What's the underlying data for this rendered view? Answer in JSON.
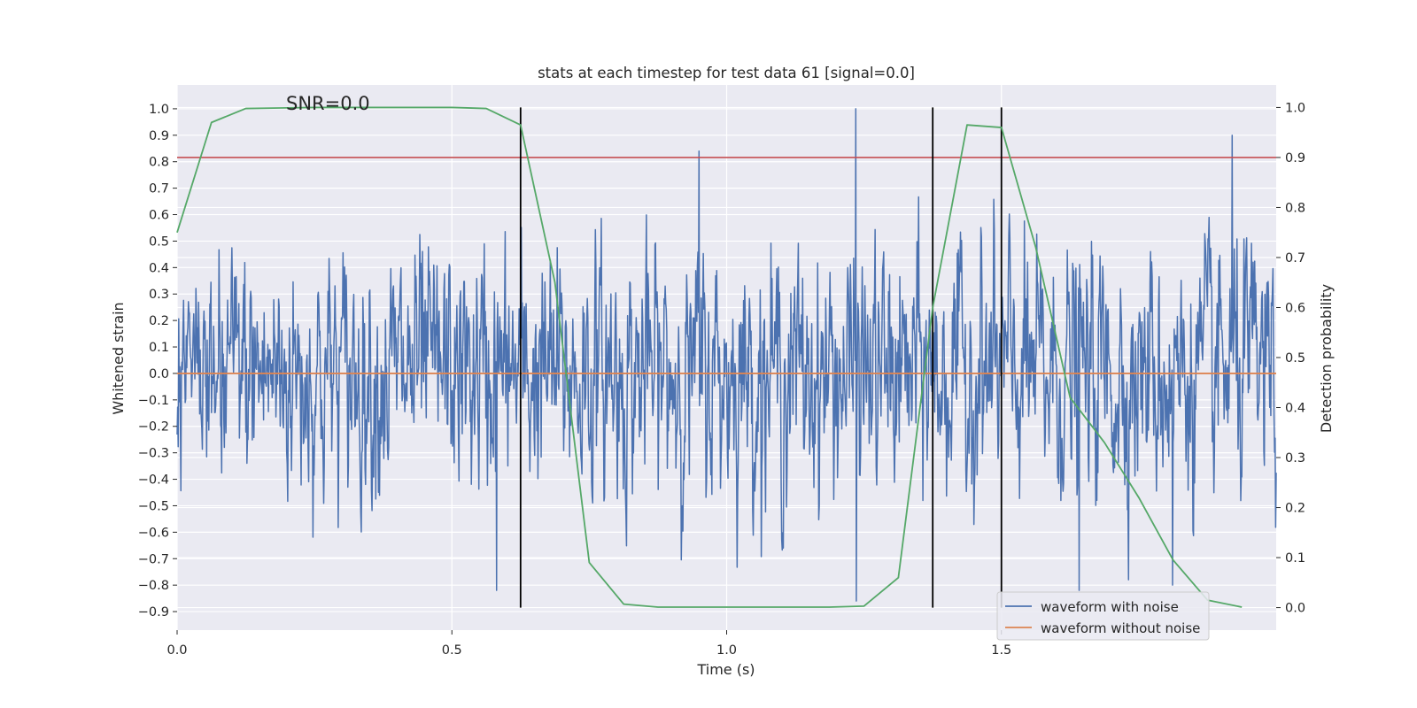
{
  "chart_data": {
    "type": "line",
    "title": "stats at each timestep for test data 61 [signal=0.0]",
    "annotation": "SNR=0.0",
    "xlabel": "Time (s)",
    "ylabel": "Whitened strain",
    "y2label": "Detection probability",
    "xlim": [
      0.0,
      2.0
    ],
    "ylim": [
      -0.97,
      1.09
    ],
    "y2lim": [
      -0.045,
      1.045
    ],
    "xticks": [
      0.0,
      0.5,
      1.0,
      1.5
    ],
    "xtick_labels": [
      "0.0",
      "0.5",
      "1.0",
      "1.5"
    ],
    "yticks": [
      1.0,
      0.9,
      0.8,
      0.7,
      0.6,
      0.5,
      0.4,
      0.3,
      0.2,
      0.1,
      0.0,
      -0.1,
      -0.2,
      -0.3,
      -0.4,
      -0.5,
      -0.6,
      -0.7,
      -0.8,
      -0.9
    ],
    "ytick_labels": [
      "1.0",
      "0.9",
      "0.8",
      "0.7",
      "0.6",
      "0.5",
      "0.4",
      "0.3",
      "0.2",
      "0.1",
      "0.0",
      "−0.1",
      "−0.2",
      "−0.3",
      "−0.4",
      "−0.5",
      "−0.6",
      "−0.7",
      "−0.8",
      "−0.9"
    ],
    "y2ticks": [
      1.0,
      0.9,
      0.8,
      0.7,
      0.6,
      0.5,
      0.4,
      0.3,
      0.2,
      0.1,
      0.0
    ],
    "y2tick_labels": [
      "1.0",
      "0.9",
      "0.8",
      "0.7",
      "0.6",
      "0.5",
      "0.4",
      "0.3",
      "0.2",
      "0.1",
      "0.0"
    ],
    "series": [
      {
        "name": "waveform with noise",
        "color": "#4c72b0",
        "axis": "left",
        "kind": "noise",
        "n_samples": 2048,
        "x_range": [
          0.0,
          2.0
        ],
        "approx_std": 0.22,
        "notable_peaks": [
          {
            "x": 1.235,
            "y": 1.0
          },
          {
            "x": 1.235,
            "y": -0.86
          },
          {
            "x": 0.95,
            "y": 0.84
          },
          {
            "x": 1.92,
            "y": 0.9
          },
          {
            "x": 0.58,
            "y": -0.82
          },
          {
            "x": 1.64,
            "y": -0.82
          },
          {
            "x": 1.81,
            "y": -0.8
          }
        ]
      },
      {
        "name": "waveform without noise",
        "color": "#dd8452",
        "axis": "left",
        "x": [
          0.0,
          2.0
        ],
        "y": [
          0.0,
          0.0
        ]
      },
      {
        "name": "detection probability",
        "color": "#55a868",
        "axis": "right",
        "x": [
          0.0,
          0.0625,
          0.125,
          0.1875,
          0.25,
          0.3125,
          0.375,
          0.4375,
          0.5,
          0.5625,
          0.625,
          0.6875,
          0.75,
          0.8125,
          0.875,
          0.9375,
          1.0,
          1.0625,
          1.125,
          1.1875,
          1.25,
          1.3125,
          1.375,
          1.4375,
          1.5,
          1.5625,
          1.625,
          1.6875,
          1.75,
          1.8125,
          1.875,
          1.9375
        ],
        "y": [
          0.75,
          0.97,
          0.998,
          0.999,
          1.0,
          1.0,
          1.0,
          1.0,
          1.0,
          0.998,
          0.965,
          0.65,
          0.09,
          0.007,
          0.001,
          0.001,
          0.001,
          0.001,
          0.001,
          0.001,
          0.003,
          0.06,
          0.6,
          0.965,
          0.96,
          0.72,
          0.42,
          0.33,
          0.22,
          0.095,
          0.015,
          0.001
        ]
      }
    ],
    "threshold": {
      "value": 0.9,
      "axis": "right",
      "color": "#c44e52"
    },
    "vlines": [
      0.625,
      1.375,
      1.5
    ],
    "vline_range": [
      0.0,
      1.0
    ],
    "legend": {
      "location": "lower-right",
      "entries": [
        {
          "label": "waveform with noise",
          "color": "#4c72b0"
        },
        {
          "label": "waveform without noise",
          "color": "#dd8452"
        }
      ]
    }
  }
}
